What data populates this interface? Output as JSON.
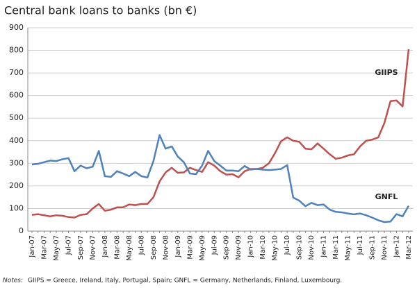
{
  "chart_data": {
    "type": "line",
    "title": "Central bank loans to banks (bn €)",
    "categories": [
      "Jan-07",
      null,
      "Mar-07",
      null,
      "May-07",
      null,
      "Jul-07",
      null,
      "Sep-07",
      null,
      "Nov-07",
      null,
      "Jan-08",
      null,
      "Mar-08",
      null,
      "May-08",
      null,
      "Jul-08",
      null,
      "Sep-08",
      null,
      "Nov-08",
      null,
      "Jan-09",
      null,
      "Mar-09",
      null,
      "May-09",
      null,
      "Jul-09",
      null,
      "Sep-09",
      null,
      "Nov-09",
      null,
      "Jan-10",
      null,
      "Mar-10",
      null,
      "May-10",
      null,
      "Jul-10",
      null,
      "Sep-10",
      null,
      "Nov-10",
      null,
      "Jan-11",
      null,
      "Mar-11",
      null,
      "May-11",
      null,
      "Jul-11",
      null,
      "Sep-11",
      null,
      "Nov-11",
      null,
      "Jan-12",
      null,
      "Mar-12"
    ],
    "series": [
      {
        "name": "GIIPS",
        "color": "#c0504d",
        "values": [
          72,
          75,
          70,
          65,
          70,
          68,
          62,
          60,
          72,
          75,
          100,
          120,
          90,
          95,
          105,
          105,
          118,
          115,
          120,
          120,
          150,
          220,
          260,
          280,
          258,
          260,
          280,
          270,
          262,
          305,
          290,
          265,
          250,
          252,
          238,
          265,
          275,
          275,
          280,
          300,
          345,
          398,
          415,
          400,
          395,
          365,
          362,
          388,
          365,
          340,
          320,
          325,
          335,
          340,
          375,
          400,
          405,
          415,
          478,
          575,
          578,
          552,
          805
        ]
      },
      {
        "name": "GNFL",
        "color": "#4f81bd",
        "values": [
          295,
          298,
          305,
          312,
          310,
          318,
          323,
          265,
          290,
          278,
          285,
          355,
          243,
          240,
          265,
          255,
          243,
          262,
          243,
          237,
          310,
          425,
          365,
          375,
          330,
          305,
          255,
          252,
          290,
          355,
          310,
          290,
          268,
          268,
          265,
          288,
          272,
          275,
          272,
          270,
          272,
          275,
          292,
          148,
          135,
          110,
          125,
          115,
          118,
          95,
          85,
          83,
          78,
          74,
          78,
          70,
          60,
          48,
          40,
          42,
          75,
          65,
          112
        ]
      }
    ],
    "ylim": [
      0,
      900
    ],
    "yticks": [
      0,
      100,
      200,
      300,
      400,
      500,
      600,
      700,
      800,
      900
    ],
    "grid": true,
    "note_label": "Notes:",
    "note": "GIIPS = Greece, Ireland, Italy, Portugal, Spain; GNFL = Germany, Netherlands, Finland, Luxembourg."
  }
}
